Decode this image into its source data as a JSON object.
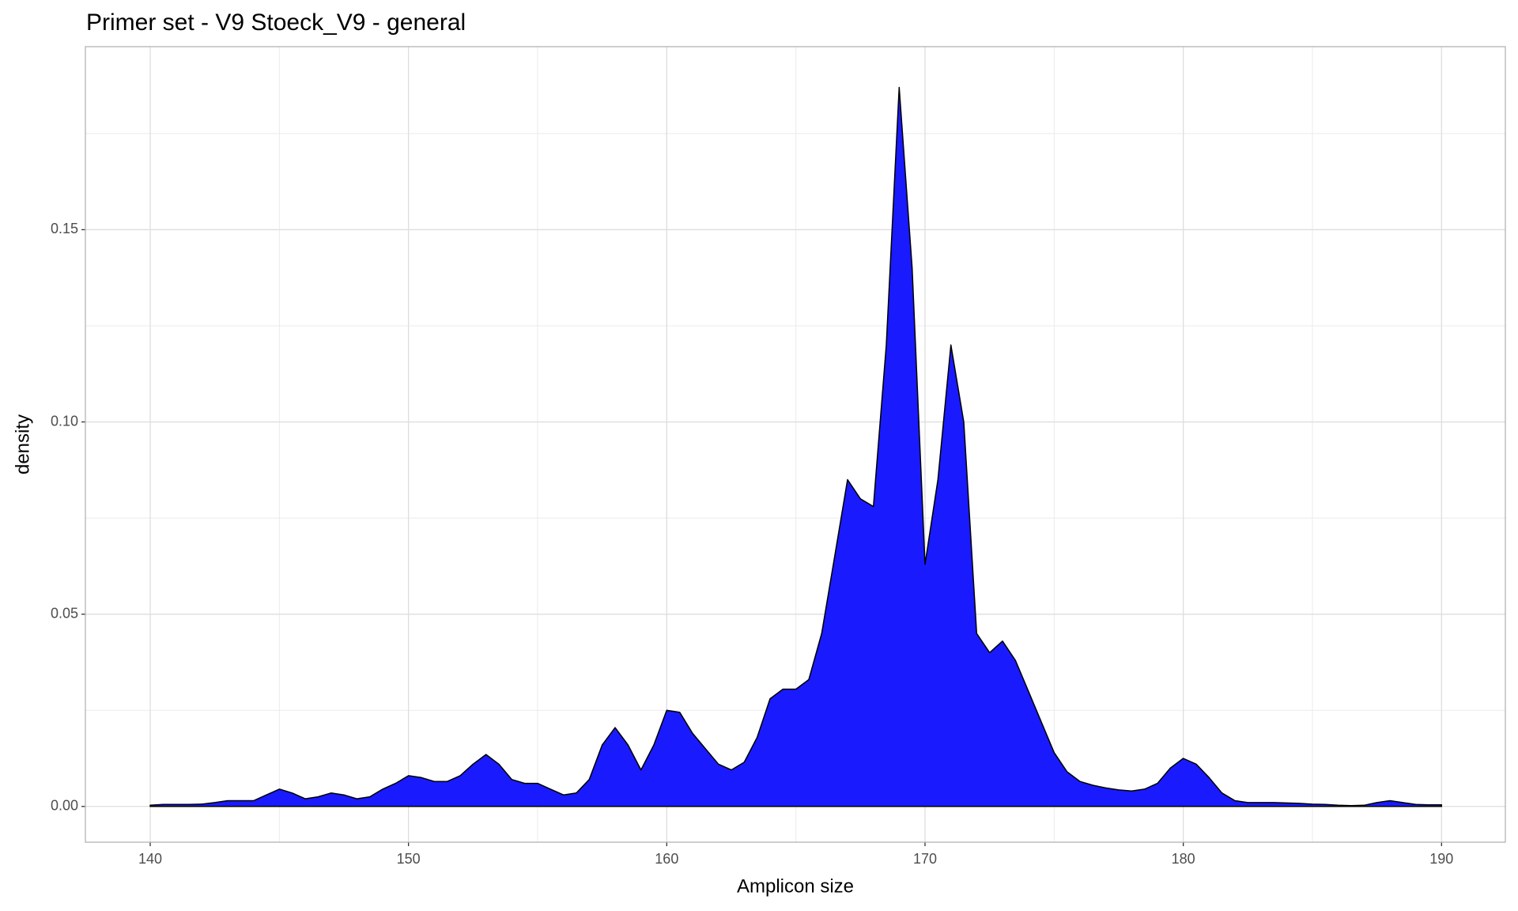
{
  "chart_data": {
    "type": "area",
    "title": "Primer set - V9 Stoeck_V9 - general",
    "x_label": "Amplicon size",
    "y_label": "density",
    "fill": "#1a1aff",
    "outline": "#000000",
    "grid": true,
    "xlim": [
      137.49,
      192.47
    ],
    "ylim": [
      -0.0093,
      0.1976
    ],
    "xticks": [
      140,
      150,
      160,
      170,
      180,
      190
    ],
    "x_minor_breaks": [
      145,
      155,
      165,
      175,
      185
    ],
    "yticks": [
      {
        "value": 0,
        "label": "0.00"
      },
      0.05,
      {
        "value": 0.1,
        "label": "0.10"
      },
      0.15
    ],
    "y_minor_breaks": [
      0.025,
      0.075,
      0.125,
      0.175
    ],
    "x": [
      140,
      140.5,
      141,
      141.5,
      142,
      142.5,
      143,
      143.5,
      144,
      144.5,
      145,
      145.5,
      146,
      146.5,
      147,
      147.5,
      148,
      148.5,
      149,
      149.5,
      150,
      150.5,
      151,
      151.5,
      152,
      152.5,
      153,
      153.5,
      154,
      154.5,
      155,
      155.5,
      156,
      156.5,
      157,
      157.5,
      158,
      158.5,
      159,
      159.5,
      160,
      160.5,
      161,
      161.5,
      162,
      162.5,
      163,
      163.5,
      164,
      164.5,
      165,
      165.5,
      166,
      166.5,
      167,
      167.5,
      168,
      168.5,
      169,
      169.5,
      170,
      170.5,
      171,
      171.5,
      172,
      172.5,
      173,
      173.5,
      174,
      174.5,
      175,
      175.5,
      176,
      176.5,
      177,
      177.5,
      178,
      178.5,
      179,
      179.5,
      180,
      180.5,
      181,
      181.5,
      182,
      182.5,
      183,
      183.5,
      184,
      184.5,
      185,
      185.5,
      186,
      186.5,
      187,
      187.5,
      188,
      188.5,
      189,
      189.5,
      190
    ],
    "values": [
      0.0003,
      0.0005,
      0.0005,
      0.0005,
      0.0006,
      0.001,
      0.0015,
      0.0015,
      0.0015,
      0.003,
      0.0045,
      0.0035,
      0.002,
      0.0025,
      0.0035,
      0.003,
      0.002,
      0.0025,
      0.0045,
      0.006,
      0.008,
      0.0075,
      0.0065,
      0.0065,
      0.008,
      0.011,
      0.0135,
      0.011,
      0.007,
      0.006,
      0.006,
      0.0045,
      0.003,
      0.0035,
      0.007,
      0.016,
      0.0205,
      0.016,
      0.0095,
      0.016,
      0.025,
      0.0245,
      0.019,
      0.015,
      0.011,
      0.0095,
      0.0115,
      0.018,
      0.028,
      0.0305,
      0.0305,
      0.033,
      0.045,
      0.065,
      0.085,
      0.08,
      0.078,
      0.12,
      0.187,
      0.14,
      0.063,
      0.085,
      0.12,
      0.1,
      0.045,
      0.04,
      0.043,
      0.038,
      0.03,
      0.022,
      0.014,
      0.009,
      0.0065,
      0.0055,
      0.0048,
      0.0043,
      0.004,
      0.0045,
      0.006,
      0.01,
      0.0125,
      0.011,
      0.0075,
      0.0035,
      0.0015,
      0.001,
      0.001,
      0.001,
      0.0009,
      0.0008,
      0.0006,
      0.0005,
      0.0003,
      0.0002,
      0.0003,
      0.001,
      0.0015,
      0.001,
      0.0005,
      0.0004,
      0.0004
    ]
  }
}
